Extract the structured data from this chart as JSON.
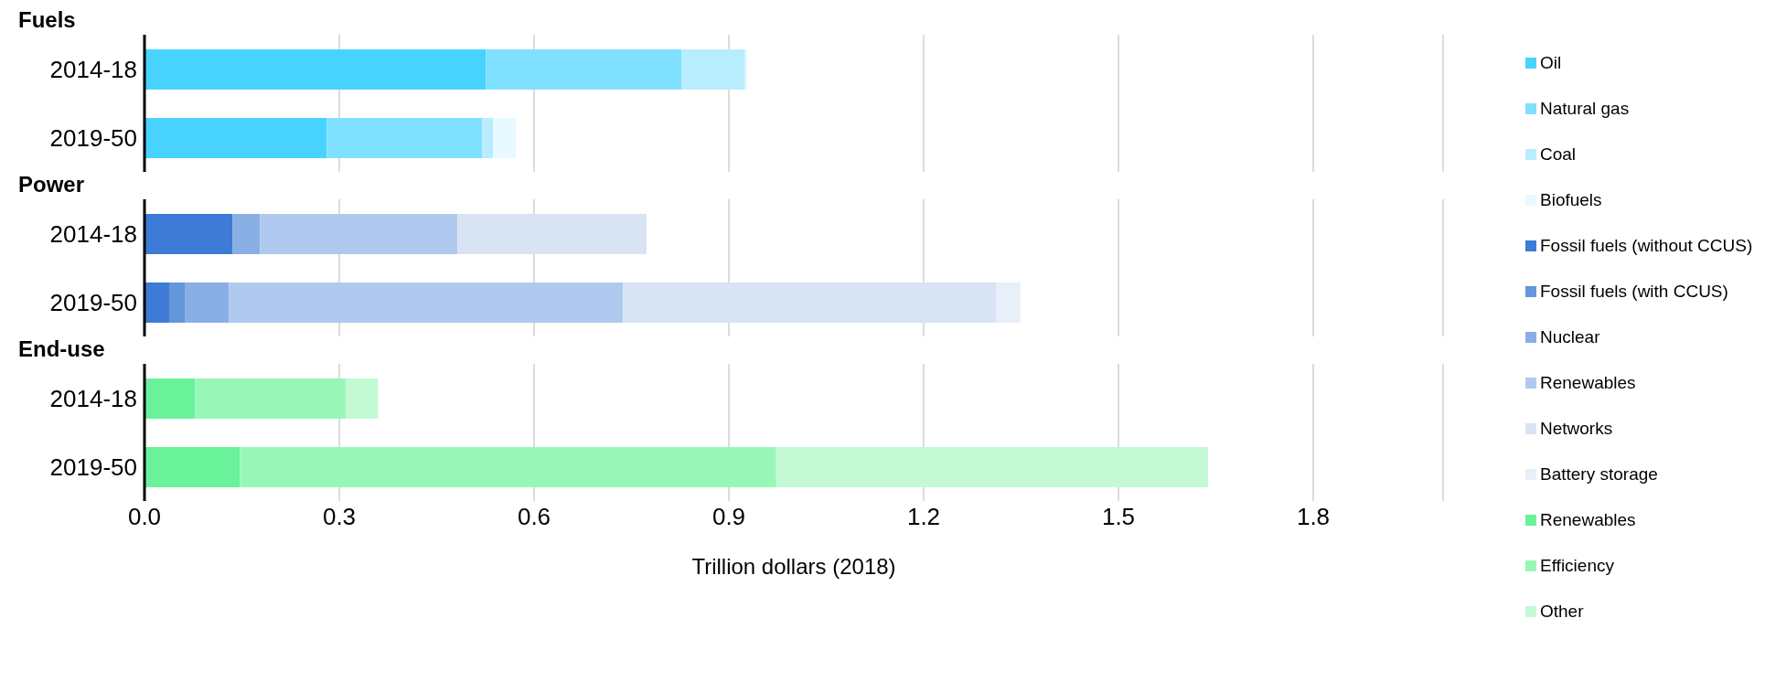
{
  "chart_data": [
    {
      "type": "bar",
      "title": "Fuels",
      "orientation": "horizontal",
      "stacked": true,
      "categories": [
        "2014-18",
        "2019-50"
      ],
      "series": [
        {
          "name": "Oil",
          "color": "#48d3ff",
          "values": [
            0.526,
            0.281
          ]
        },
        {
          "name": "Natural gas",
          "color": "#80e0ff",
          "values": [
            0.301,
            0.239
          ]
        },
        {
          "name": "Coal",
          "color": "#b8edff",
          "values": [
            0.098,
            0.017
          ]
        },
        {
          "name": "Biofuels",
          "color": "#e8f9ff",
          "values": [
            0.003,
            0.035
          ]
        }
      ],
      "xlim": [
        0,
        2.0
      ],
      "xticks": [
        0,
        0.3,
        0.6,
        0.9,
        1.2,
        1.5,
        1.8
      ],
      "grid": "x",
      "legend": "right",
      "tick_labels": "y"
    },
    {
      "type": "bar",
      "title": "Power",
      "orientation": "horizontal",
      "stacked": true,
      "categories": [
        "2014-18",
        "2019-50"
      ],
      "series": [
        {
          "name": "Fossil fuels (without CCUS)",
          "color": "#3d7bd6",
          "values": [
            0.136,
            0.038
          ]
        },
        {
          "name": "Fossil fuels (with CCUS)",
          "color": "#6496dc",
          "values": [
            0,
            0.025
          ]
        },
        {
          "name": "Nuclear",
          "color": "#8aafe4",
          "values": [
            0.042,
            0.067
          ]
        },
        {
          "name": "Renewables",
          "color": "#b0c9ee",
          "values": [
            0.304,
            0.607
          ]
        },
        {
          "name": "Networks",
          "color": "#d8e3f4",
          "values": [
            0.291,
            0.575
          ]
        },
        {
          "name": "Battery storage",
          "color": "#e8eff9",
          "values": [
            0,
            0.037
          ]
        }
      ],
      "xlim": [
        0,
        2.0
      ],
      "xticks": [
        0,
        0.3,
        0.6,
        0.9,
        1.2,
        1.5,
        1.8
      ],
      "grid": "x",
      "legend": "right",
      "tick_labels": "y"
    },
    {
      "type": "bar",
      "title": "End-use",
      "xlabel": "Trillion dollars (2018)",
      "orientation": "horizontal",
      "stacked": true,
      "categories": [
        "2014-18",
        "2019-50"
      ],
      "series": [
        {
          "name": "Renewables",
          "color": "#6af29a",
          "values": [
            0.078,
            0.147
          ]
        },
        {
          "name": "Efficiency",
          "color": "#98f7b7",
          "values": [
            0.232,
            0.826
          ]
        },
        {
          "name": "Other",
          "color": "#c4f9d6",
          "values": [
            0.05,
            0.665
          ]
        }
      ],
      "xlim": [
        0,
        2.0
      ],
      "xticks": [
        {
          "value": 0,
          "label": "0.0"
        },
        {
          "value": 0.3,
          "label": "0.3"
        },
        {
          "value": 0.6,
          "label": "0.6"
        },
        {
          "value": 0.9,
          "label": "0.9"
        },
        {
          "value": 1.2,
          "label": "1.2"
        },
        {
          "value": 1.5,
          "label": "1.5"
        },
        {
          "value": 1.8,
          "label": "1.8"
        }
      ],
      "grid": "x",
      "legend": "right"
    }
  ]
}
